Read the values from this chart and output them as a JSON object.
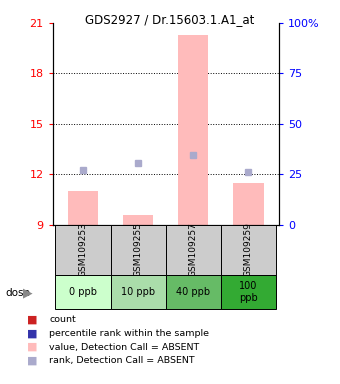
{
  "title": "GDS2927 / Dr.15603.1.A1_at",
  "samples": [
    "GSM109253",
    "GSM109255",
    "GSM109257",
    "GSM109259"
  ],
  "doses": [
    "0 ppb",
    "10 ppb",
    "40 ppb",
    "100\nppb"
  ],
  "dose_colors": [
    "#ccffcc",
    "#aaddaa",
    "#66bb66",
    "#33aa33"
  ],
  "ylim_left": [
    9,
    21
  ],
  "ylim_right": [
    0,
    100
  ],
  "yticks_left": [
    9,
    12,
    15,
    18,
    21
  ],
  "yticks_right": [
    0,
    25,
    50,
    75,
    100
  ],
  "bar_values": [
    11.0,
    9.6,
    20.3,
    11.5
  ],
  "bar_color": "#ffbbbb",
  "rank_squares_absent": [
    12.25,
    12.65,
    13.15,
    12.15
  ],
  "rank_color_lightblue": "#aaaacc",
  "bar_bottom": 9,
  "x_positions": [
    0,
    1,
    2,
    3
  ],
  "bar_width": 0.55,
  "gridlines": [
    12,
    15,
    18
  ],
  "legend_items": [
    {
      "color": "#cc2222",
      "label": "count"
    },
    {
      "color": "#3333aa",
      "label": "percentile rank within the sample"
    },
    {
      "color": "#ffbbbb",
      "label": "value, Detection Call = ABSENT"
    },
    {
      "color": "#aaaacc",
      "label": "rank, Detection Call = ABSENT"
    }
  ]
}
